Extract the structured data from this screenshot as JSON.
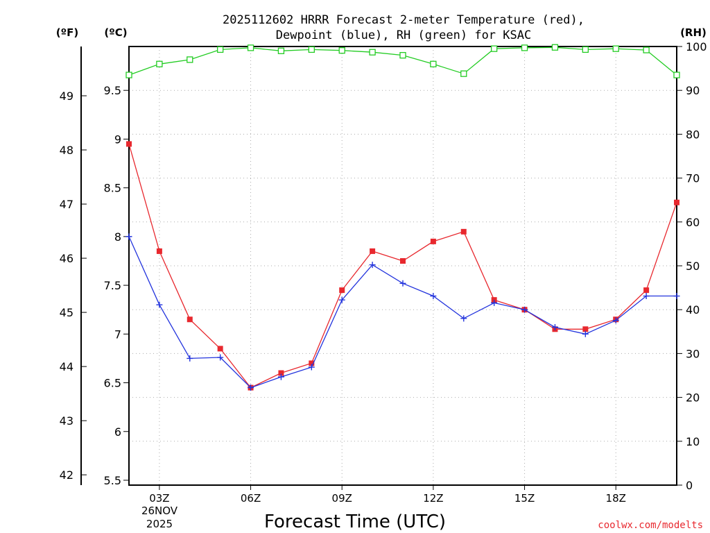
{
  "chart_data": {
    "type": "line",
    "title_line1": "2025112602 HRRR Forecast 2-meter Temperature (red),",
    "title_line2": "Dewpoint (blue), RH (green) for KSAC",
    "xlabel": "Forecast Time (UTC)",
    "credit": "coolwx.com/modelts",
    "unit_f": "(ºF)",
    "unit_c": "(ºC)",
    "unit_rh": "(RH)",
    "date_line1": "26NOV",
    "date_line2": "2025",
    "x_range": [
      2,
      20
    ],
    "x_ticks": [
      {
        "x": 3,
        "label": "03Z"
      },
      {
        "x": 6,
        "label": "06Z"
      },
      {
        "x": 9,
        "label": "09Z"
      },
      {
        "x": 12,
        "label": "12Z"
      },
      {
        "x": 15,
        "label": "15Z"
      },
      {
        "x": 18,
        "label": "18Z"
      }
    ],
    "c_range": [
      5.45,
      9.95
    ],
    "c_ticks": [
      "5.5",
      "6",
      "6.5",
      "7",
      "7.5",
      "8",
      "8.5",
      "9",
      "9.5"
    ],
    "f_ticks": [
      "42",
      "43",
      "44",
      "45",
      "46",
      "47",
      "48",
      "49"
    ],
    "rh_range": [
      0,
      100
    ],
    "rh_ticks": [
      "0",
      "10",
      "20",
      "30",
      "40",
      "50",
      "60",
      "70",
      "80",
      "90",
      "100"
    ],
    "x": [
      2,
      3,
      4,
      5,
      6,
      7,
      8,
      9,
      10,
      11,
      12,
      13,
      14,
      15,
      16,
      17,
      18,
      19,
      20
    ],
    "series": [
      {
        "name": "Temperature",
        "color": "#e8282e",
        "axis": "c",
        "marker": "filled-square",
        "values": [
          8.95,
          7.85,
          7.15,
          6.85,
          6.45,
          6.6,
          6.7,
          7.45,
          7.85,
          7.75,
          7.95,
          8.05,
          7.35,
          7.25,
          7.05,
          7.05,
          7.15,
          7.45,
          8.35
        ]
      },
      {
        "name": "Dewpoint",
        "color": "#2233dd",
        "axis": "c",
        "marker": "plus",
        "values": [
          8.0,
          7.3,
          6.75,
          6.76,
          6.45,
          6.56,
          6.66,
          7.35,
          7.71,
          7.52,
          7.39,
          7.16,
          7.32,
          7.25,
          7.07,
          7.0,
          7.14,
          7.39,
          7.39
        ]
      },
      {
        "name": "RH",
        "color": "#22cc22",
        "axis": "rh",
        "marker": "open-square",
        "values": [
          93.5,
          96,
          97,
          99.3,
          99.7,
          99,
          99.3,
          99.1,
          98.7,
          98,
          96,
          93.8,
          99.5,
          99.7,
          99.8,
          99.3,
          99.5,
          99.2,
          93.5
        ]
      }
    ]
  }
}
